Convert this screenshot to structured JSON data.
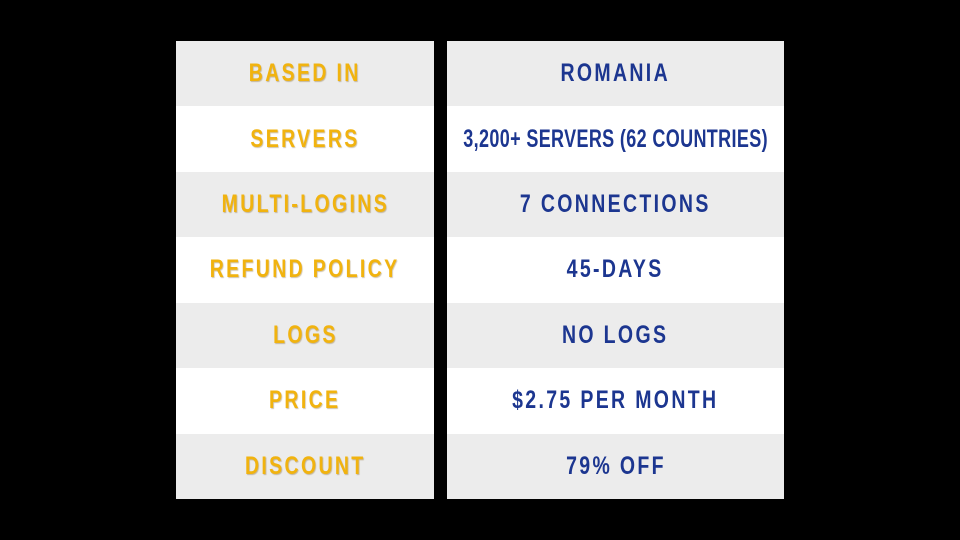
{
  "colors": {
    "label": "#f1b30f",
    "value": "#1c3690",
    "row_alt": "#ececec",
    "row": "#ffffff",
    "background": "#000000"
  },
  "rows": [
    {
      "label": "BASED IN",
      "value": "ROMANIA"
    },
    {
      "label": "SERVERS",
      "value": "3,200+ SERVERS (62 COUNTRIES)"
    },
    {
      "label": "MULTI-LOGINS",
      "value": "7 CONNECTIONS"
    },
    {
      "label": "REFUND POLICY",
      "value": "45-DAYS"
    },
    {
      "label": "LOGS",
      "value": "NO LOGS"
    },
    {
      "label": "PRICE",
      "value": "$2.75 PER MONTH"
    },
    {
      "label": "DISCOUNT",
      "value": "79% OFF"
    }
  ]
}
